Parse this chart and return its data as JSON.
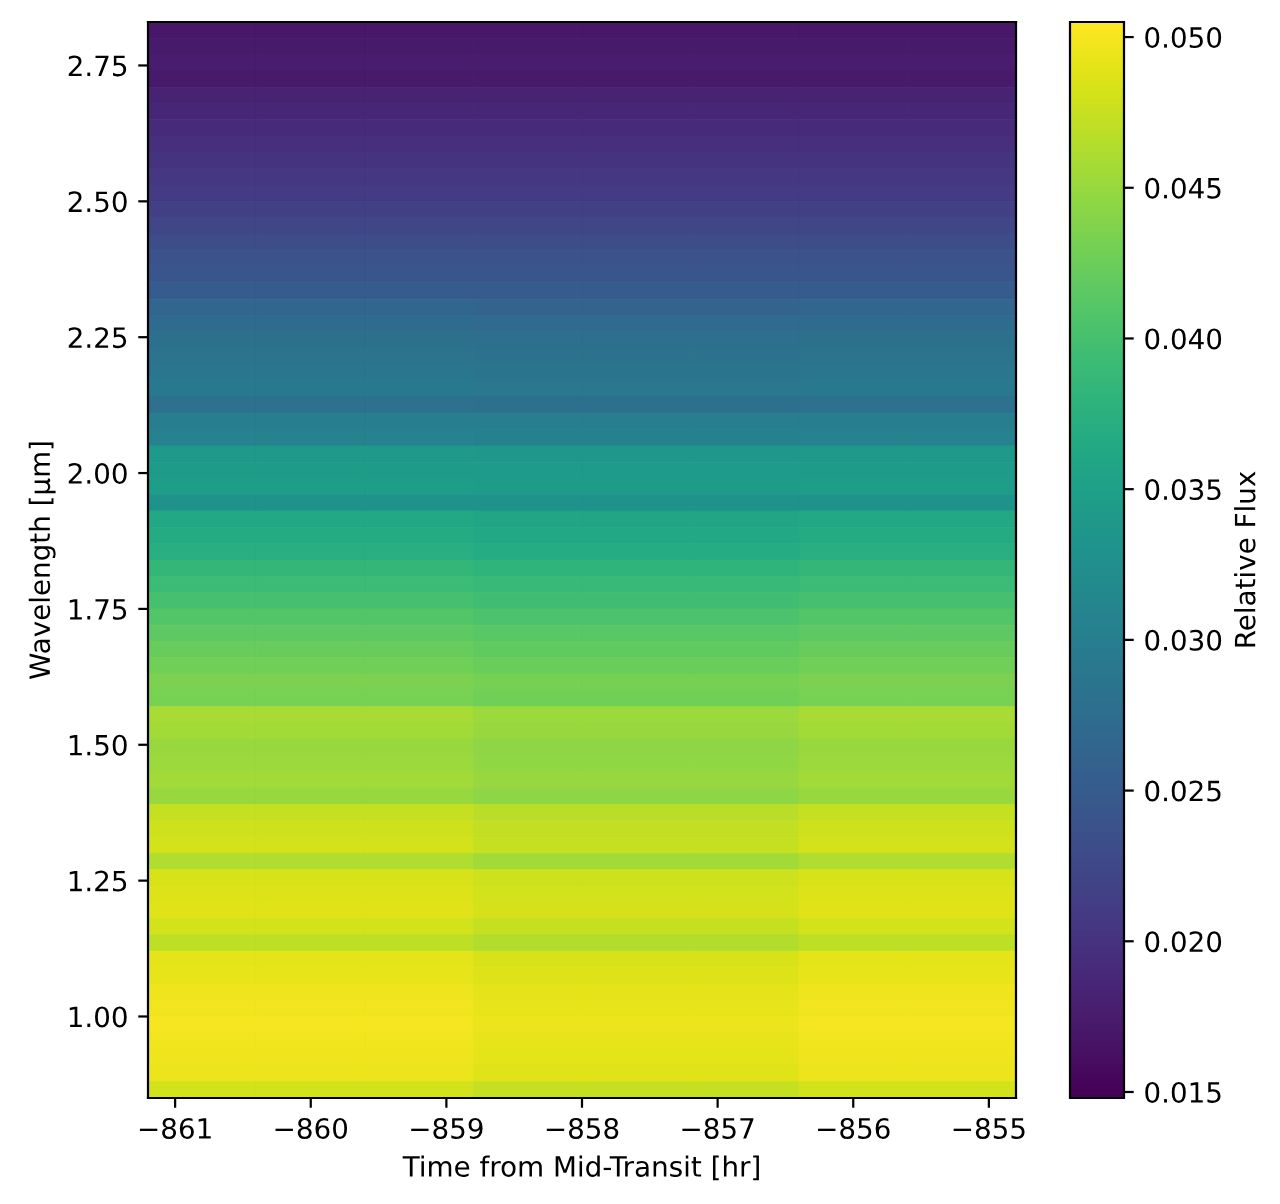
{
  "chart_data": {
    "type": "heatmap",
    "xlabel": "Time from Mid-Transit [hr]",
    "ylabel": "Wavelength [μm]",
    "clabel": "Relative Flux",
    "x": [
      -860.8,
      -860.0,
      -859.2,
      -858.4,
      -857.6,
      -856.8,
      -856.0,
      -855.2
    ],
    "xlim": [
      -861.2,
      -854.8
    ],
    "xticks": [
      {
        "value": -861,
        "label": "−861"
      },
      {
        "value": -860,
        "label": "−860"
      },
      {
        "value": -859,
        "label": "−859"
      },
      {
        "value": -858,
        "label": "−858"
      },
      {
        "value": -857,
        "label": "−857"
      },
      {
        "value": -856,
        "label": "−856"
      },
      {
        "value": -855,
        "label": "−855"
      }
    ],
    "ylim": [
      0.85,
      2.83
    ],
    "yticks": [
      {
        "value": 1.0,
        "label": "1.00"
      },
      {
        "value": 1.25,
        "label": "1.25"
      },
      {
        "value": 1.5,
        "label": "1.50"
      },
      {
        "value": 1.75,
        "label": "1.75"
      },
      {
        "value": 2.0,
        "label": "2.00"
      },
      {
        "value": 2.25,
        "label": "2.25"
      },
      {
        "value": 2.5,
        "label": "2.50"
      },
      {
        "value": 2.75,
        "label": "2.75"
      }
    ],
    "clim": [
      0.0148,
      0.0505
    ],
    "cticks": [
      {
        "value": 0.015,
        "label": "0.015"
      },
      {
        "value": 0.02,
        "label": "0.020"
      },
      {
        "value": 0.025,
        "label": "0.025"
      },
      {
        "value": 0.03,
        "label": "0.030"
      },
      {
        "value": 0.035,
        "label": "0.035"
      },
      {
        "value": 0.04,
        "label": "0.040"
      },
      {
        "value": 0.045,
        "label": "0.045"
      },
      {
        "value": 0.05,
        "label": "0.050"
      }
    ],
    "cells": [
      [
        0.017,
        0.017,
        0.017,
        0.017,
        0.017,
        0.017,
        0.017,
        0.017
      ],
      [
        0.0172,
        0.0172,
        0.0172,
        0.0172,
        0.0172,
        0.0172,
        0.0172,
        0.0172
      ],
      [
        0.0176,
        0.0176,
        0.0176,
        0.0176,
        0.0176,
        0.0176,
        0.0176,
        0.0176
      ],
      [
        0.0172,
        0.0172,
        0.0172,
        0.0172,
        0.0172,
        0.0172,
        0.0172,
        0.0172
      ],
      [
        0.0182,
        0.0182,
        0.0182,
        0.0182,
        0.0182,
        0.0182,
        0.0182,
        0.0182
      ],
      [
        0.0186,
        0.0186,
        0.0186,
        0.0186,
        0.0186,
        0.0186,
        0.0186,
        0.0186
      ],
      [
        0.019,
        0.019,
        0.019,
        0.019,
        0.019,
        0.019,
        0.019,
        0.019
      ],
      [
        0.0196,
        0.0196,
        0.0196,
        0.0196,
        0.0196,
        0.0196,
        0.0196,
        0.0196
      ],
      [
        0.02,
        0.02,
        0.02,
        0.02,
        0.02,
        0.02,
        0.02,
        0.02
      ],
      [
        0.0205,
        0.0205,
        0.0205,
        0.0205,
        0.0205,
        0.0205,
        0.0205,
        0.0205
      ],
      [
        0.021,
        0.021,
        0.021,
        0.021,
        0.021,
        0.021,
        0.021,
        0.021
      ],
      [
        0.0214,
        0.0214,
        0.0214,
        0.0214,
        0.0214,
        0.0214,
        0.0214,
        0.0214
      ],
      [
        0.0222,
        0.0222,
        0.0222,
        0.0222,
        0.0222,
        0.0222,
        0.0222,
        0.0222
      ],
      [
        0.023,
        0.023,
        0.023,
        0.023,
        0.023,
        0.023,
        0.023,
        0.023
      ],
      [
        0.0238,
        0.0238,
        0.0238,
        0.0238,
        0.0238,
        0.0238,
        0.0238,
        0.0238
      ],
      [
        0.0244,
        0.0244,
        0.0244,
        0.0244,
        0.0244,
        0.0244,
        0.0244,
        0.0244
      ],
      [
        0.025,
        0.025,
        0.025,
        0.025,
        0.025,
        0.025,
        0.025,
        0.025
      ],
      [
        0.0264,
        0.0264,
        0.0264,
        0.0262,
        0.0262,
        0.0262,
        0.0264,
        0.0264
      ],
      [
        0.0272,
        0.0272,
        0.0272,
        0.027,
        0.027,
        0.027,
        0.0272,
        0.0272
      ],
      [
        0.0278,
        0.0278,
        0.0278,
        0.0276,
        0.0276,
        0.0276,
        0.0278,
        0.0278
      ],
      [
        0.0284,
        0.0284,
        0.0284,
        0.0282,
        0.0282,
        0.0282,
        0.0284,
        0.0284
      ],
      [
        0.0288,
        0.0288,
        0.0288,
        0.0286,
        0.0286,
        0.0286,
        0.0288,
        0.0288
      ],
      [
        0.0292,
        0.0292,
        0.0292,
        0.029,
        0.029,
        0.029,
        0.0292,
        0.0292
      ],
      [
        0.028,
        0.028,
        0.028,
        0.0278,
        0.0278,
        0.0278,
        0.028,
        0.028
      ],
      [
        0.03,
        0.03,
        0.03,
        0.0298,
        0.0298,
        0.0298,
        0.03,
        0.03
      ],
      [
        0.0306,
        0.0306,
        0.0306,
        0.0304,
        0.0304,
        0.0304,
        0.0306,
        0.0306
      ],
      [
        0.034,
        0.034,
        0.034,
        0.0338,
        0.0338,
        0.0338,
        0.034,
        0.034
      ],
      [
        0.0344,
        0.0344,
        0.0344,
        0.0342,
        0.0342,
        0.0342,
        0.0344,
        0.0344
      ],
      [
        0.0346,
        0.0346,
        0.0346,
        0.0344,
        0.0344,
        0.0344,
        0.0346,
        0.0346
      ],
      [
        0.033,
        0.033,
        0.033,
        0.0328,
        0.0328,
        0.0328,
        0.033,
        0.033
      ],
      [
        0.0362,
        0.0362,
        0.0362,
        0.0358,
        0.0358,
        0.0358,
        0.0362,
        0.0362
      ],
      [
        0.0366,
        0.0366,
        0.0366,
        0.0362,
        0.0362,
        0.0362,
        0.0366,
        0.0366
      ],
      [
        0.0372,
        0.0372,
        0.0372,
        0.0368,
        0.0368,
        0.0368,
        0.0372,
        0.0372
      ],
      [
        0.0384,
        0.0384,
        0.0384,
        0.038,
        0.038,
        0.038,
        0.0384,
        0.0384
      ],
      [
        0.0392,
        0.0392,
        0.0392,
        0.0388,
        0.0388,
        0.0388,
        0.0392,
        0.0392
      ],
      [
        0.04,
        0.04,
        0.04,
        0.0396,
        0.0396,
        0.0396,
        0.04,
        0.04
      ],
      [
        0.0408,
        0.0408,
        0.0408,
        0.0404,
        0.0404,
        0.0404,
        0.0408,
        0.0408
      ],
      [
        0.0416,
        0.0416,
        0.0416,
        0.0412,
        0.0412,
        0.0412,
        0.0416,
        0.0416
      ],
      [
        0.0422,
        0.0422,
        0.0422,
        0.0418,
        0.0418,
        0.0418,
        0.0422,
        0.0422
      ],
      [
        0.0428,
        0.0428,
        0.0428,
        0.0424,
        0.0424,
        0.0424,
        0.0428,
        0.0428
      ],
      [
        0.0434,
        0.0434,
        0.0434,
        0.043,
        0.043,
        0.043,
        0.0434,
        0.0434
      ],
      [
        0.0432,
        0.0432,
        0.0432,
        0.0428,
        0.0428,
        0.0428,
        0.0432,
        0.0432
      ],
      [
        0.0458,
        0.0458,
        0.0458,
        0.0452,
        0.0452,
        0.0452,
        0.0458,
        0.0458
      ],
      [
        0.0456,
        0.0456,
        0.0456,
        0.045,
        0.045,
        0.045,
        0.0456,
        0.0456
      ],
      [
        0.045,
        0.045,
        0.045,
        0.0444,
        0.0444,
        0.0444,
        0.045,
        0.045
      ],
      [
        0.0452,
        0.0452,
        0.0452,
        0.0446,
        0.0446,
        0.0446,
        0.0452,
        0.0452
      ],
      [
        0.0456,
        0.0456,
        0.0456,
        0.045,
        0.045,
        0.045,
        0.0456,
        0.0456
      ],
      [
        0.045,
        0.045,
        0.045,
        0.0444,
        0.0444,
        0.0444,
        0.045,
        0.045
      ],
      [
        0.0474,
        0.0474,
        0.0474,
        0.0468,
        0.0468,
        0.0468,
        0.0474,
        0.0474
      ],
      [
        0.0478,
        0.0478,
        0.0478,
        0.0472,
        0.0472,
        0.0472,
        0.0478,
        0.0478
      ],
      [
        0.048,
        0.048,
        0.048,
        0.0474,
        0.0474,
        0.0474,
        0.048,
        0.048
      ],
      [
        0.0462,
        0.0462,
        0.0462,
        0.0456,
        0.0456,
        0.0456,
        0.0462,
        0.0462
      ],
      [
        0.0484,
        0.0484,
        0.0484,
        0.0478,
        0.0478,
        0.0478,
        0.0484,
        0.0484
      ],
      [
        0.0486,
        0.0486,
        0.0486,
        0.048,
        0.048,
        0.048,
        0.0486,
        0.0486
      ],
      [
        0.0488,
        0.0488,
        0.0488,
        0.0482,
        0.0482,
        0.0482,
        0.0488,
        0.0488
      ],
      [
        0.048,
        0.048,
        0.048,
        0.0474,
        0.0474,
        0.0474,
        0.048,
        0.048
      ],
      [
        0.047,
        0.047,
        0.047,
        0.0464,
        0.0464,
        0.0464,
        0.047,
        0.047
      ],
      [
        0.049,
        0.049,
        0.049,
        0.0484,
        0.0484,
        0.0484,
        0.049,
        0.049
      ],
      [
        0.0492,
        0.0492,
        0.0492,
        0.0486,
        0.0486,
        0.0486,
        0.0492,
        0.0492
      ],
      [
        0.0496,
        0.0496,
        0.0496,
        0.049,
        0.049,
        0.049,
        0.0496,
        0.0496
      ],
      [
        0.0498,
        0.0498,
        0.0498,
        0.0492,
        0.0492,
        0.0492,
        0.0498,
        0.0498
      ],
      [
        0.05,
        0.05,
        0.05,
        0.0494,
        0.0494,
        0.0494,
        0.05,
        0.05
      ],
      [
        0.0498,
        0.0498,
        0.0498,
        0.0492,
        0.0492,
        0.0492,
        0.0498,
        0.0498
      ],
      [
        0.0496,
        0.0496,
        0.0496,
        0.049,
        0.049,
        0.049,
        0.0496,
        0.0496
      ],
      [
        0.0494,
        0.0494,
        0.0494,
        0.0488,
        0.0488,
        0.0488,
        0.0494,
        0.0494
      ],
      [
        0.048,
        0.048,
        0.048,
        0.0474,
        0.0474,
        0.0474,
        0.048,
        0.048
      ]
    ]
  }
}
